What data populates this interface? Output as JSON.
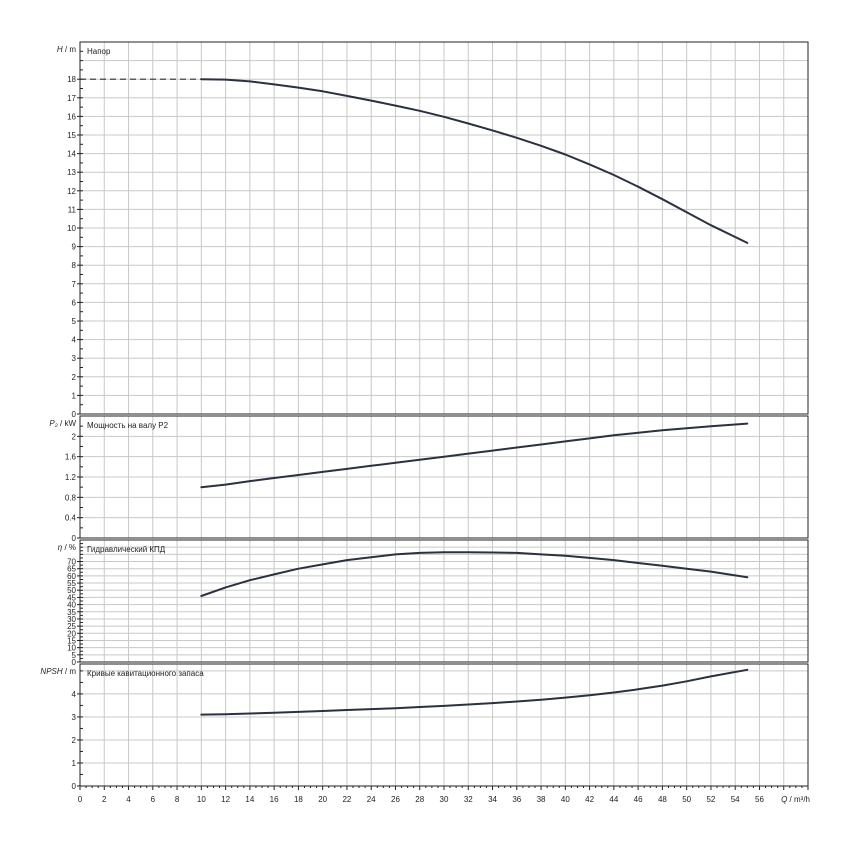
{
  "chart_data": [
    {
      "type": "line",
      "title": "Напор",
      "ylabel": {
        "symbol": "H",
        "unit": "m"
      },
      "ylim": [
        0,
        20
      ],
      "yticks": [
        0,
        1,
        2,
        3,
        4,
        5,
        6,
        7,
        8,
        9,
        10,
        11,
        12,
        13,
        14,
        15,
        16,
        17,
        18
      ],
      "x": [
        10,
        12,
        14,
        16,
        18,
        20,
        22,
        24,
        26,
        28,
        30,
        32,
        34,
        36,
        38,
        40,
        42,
        44,
        46,
        48,
        50,
        52,
        55
      ],
      "values": [
        18.0,
        17.98,
        17.88,
        17.72,
        17.55,
        17.35,
        17.1,
        16.85,
        16.58,
        16.3,
        15.98,
        15.62,
        15.25,
        14.85,
        14.42,
        13.95,
        13.42,
        12.85,
        12.22,
        11.55,
        10.85,
        10.15,
        9.2
      ],
      "dashed_segment": {
        "x": [
          0,
          10
        ],
        "values": [
          18.0,
          18.0
        ]
      }
    },
    {
      "type": "line",
      "title": "Мощность на валу P2",
      "ylabel": {
        "symbol": "P₂",
        "unit": "kW"
      },
      "ylim": [
        0,
        2.4
      ],
      "yticks": [
        0,
        0.4,
        0.8,
        1.2,
        1.6,
        2
      ],
      "x": [
        10,
        12,
        14,
        16,
        18,
        20,
        22,
        24,
        26,
        28,
        30,
        32,
        34,
        36,
        38,
        40,
        42,
        44,
        46,
        48,
        50,
        52,
        55
      ],
      "values": [
        1.0,
        1.05,
        1.12,
        1.18,
        1.24,
        1.3,
        1.36,
        1.42,
        1.48,
        1.54,
        1.6,
        1.66,
        1.72,
        1.78,
        1.84,
        1.9,
        1.96,
        2.02,
        2.07,
        2.12,
        2.16,
        2.2,
        2.25
      ]
    },
    {
      "type": "line",
      "title": "Гидравлический КПД",
      "ylabel": {
        "symbol": "η",
        "unit": "%"
      },
      "ylim": [
        0,
        85
      ],
      "yticks": [
        0,
        5,
        10,
        15,
        20,
        25,
        30,
        35,
        40,
        45,
        50,
        55,
        60,
        65,
        70
      ],
      "x": [
        10,
        12,
        14,
        16,
        18,
        20,
        22,
        24,
        26,
        28,
        30,
        32,
        34,
        36,
        38,
        40,
        42,
        44,
        46,
        48,
        50,
        52,
        55
      ],
      "values": [
        46,
        52,
        57,
        61,
        65,
        68,
        71,
        73,
        75,
        76,
        76.5,
        76.5,
        76.3,
        76,
        75,
        74,
        72.5,
        71,
        69,
        67,
        65,
        63,
        59
      ]
    },
    {
      "type": "line",
      "title": "Кривые кавитационного запаса",
      "ylabel": {
        "symbol": "NPSH",
        "unit": "m"
      },
      "ylim": [
        0,
        5.3
      ],
      "yticks": [
        0,
        1,
        2,
        3,
        4
      ],
      "x": [
        10,
        12,
        14,
        16,
        18,
        20,
        22,
        24,
        26,
        28,
        30,
        32,
        34,
        36,
        38,
        40,
        42,
        44,
        46,
        48,
        50,
        52,
        55
      ],
      "values": [
        3.1,
        3.12,
        3.15,
        3.18,
        3.22,
        3.26,
        3.3,
        3.34,
        3.38,
        3.43,
        3.48,
        3.54,
        3.6,
        3.67,
        3.75,
        3.84,
        3.94,
        4.06,
        4.2,
        4.36,
        4.55,
        4.76,
        5.05
      ]
    }
  ],
  "xaxis": {
    "label": "Q / m³/h",
    "xlim": [
      0,
      60
    ],
    "ticks": [
      0,
      2,
      4,
      6,
      8,
      10,
      12,
      14,
      16,
      18,
      20,
      22,
      24,
      26,
      28,
      30,
      32,
      34,
      36,
      38,
      40,
      42,
      44,
      46,
      48,
      50,
      52,
      54,
      56
    ]
  },
  "grid": true,
  "colors": {
    "curve": "#2a3140",
    "grid": "#c8c8c8",
    "frame": "#222222"
  }
}
